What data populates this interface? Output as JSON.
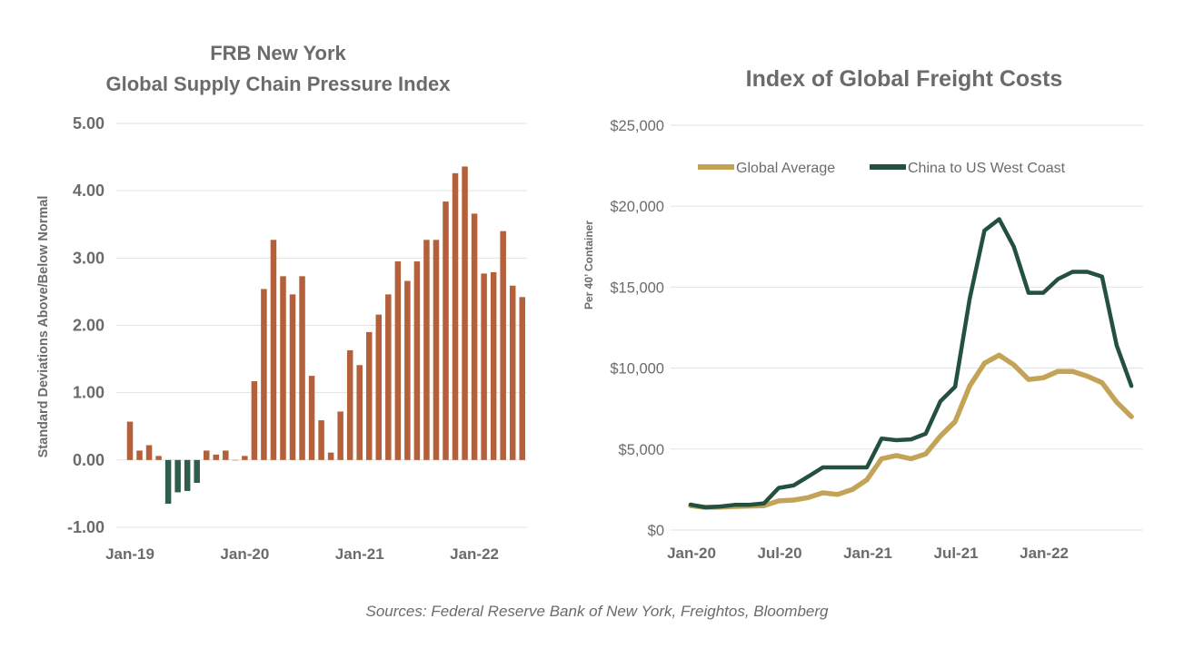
{
  "colors": {
    "positive_bar": "#b4603a",
    "negative_bar": "#2e5e4b",
    "global_average": "#c3a457",
    "china_us_west": "#24513f",
    "text": "#6b6b6b",
    "grid": "#e2e2e2"
  },
  "source_note": "Sources: Federal Reserve Bank of New York, Freightos, Bloomberg",
  "chart_data": [
    {
      "type": "bar",
      "title_line1": "FRB New York",
      "title_line2": "Global Supply Chain Pressure Index",
      "xlabel": "",
      "ylabel": "Standard Deviations Above/Below Normal",
      "ylim": [
        -1,
        5
      ],
      "yticks": [
        5,
        4,
        3,
        2,
        1,
        0,
        -1
      ],
      "ytick_labels": [
        "5.00",
        "4.00",
        "3.00",
        "2.00",
        "1.00",
        "0.00",
        "-1.00"
      ],
      "grid": true,
      "xtick_labels": [
        {
          "index": 0,
          "label": "Jan-19"
        },
        {
          "index": 12,
          "label": "Jan-20"
        },
        {
          "index": 24,
          "label": "Jan-21"
        },
        {
          "index": 36,
          "label": "Jan-22"
        }
      ],
      "categories": [
        "Jan-19",
        "Feb-19",
        "Mar-19",
        "Apr-19",
        "May-19",
        "Jun-19",
        "Jul-19",
        "Aug-19",
        "Sep-19",
        "Oct-19",
        "Nov-19",
        "Dec-19",
        "Jan-20",
        "Feb-20",
        "Mar-20",
        "Apr-20",
        "May-20",
        "Jun-20",
        "Jul-20",
        "Aug-20",
        "Sep-20",
        "Oct-20",
        "Nov-20",
        "Dec-20",
        "Jan-21",
        "Feb-21",
        "Mar-21",
        "Apr-21",
        "May-21",
        "Jun-21",
        "Jul-21",
        "Aug-21",
        "Sep-21",
        "Oct-21",
        "Nov-21",
        "Dec-21",
        "Jan-22",
        "Feb-22",
        "Mar-22",
        "Apr-22",
        "May-22",
        "Jun-22"
      ],
      "values": [
        0.57,
        0.14,
        0.22,
        0.06,
        -0.65,
        -0.48,
        -0.46,
        -0.34,
        0.14,
        0.08,
        0.14,
        0.0,
        0.06,
        1.17,
        2.54,
        3.27,
        2.73,
        2.46,
        2.73,
        1.25,
        0.59,
        0.11,
        0.72,
        1.63,
        1.41,
        1.9,
        2.16,
        2.46,
        2.95,
        2.66,
        2.95,
        3.27,
        3.27,
        3.84,
        4.26,
        4.36,
        3.66,
        2.77,
        2.79,
        3.4,
        2.59,
        2.42
      ]
    },
    {
      "type": "line",
      "title": "Index of Global Freight Costs",
      "xlabel": "",
      "ylabel": "Per 40’ Container",
      "ylim": [
        0,
        25000
      ],
      "yticks": [
        25000,
        20000,
        15000,
        10000,
        5000,
        0
      ],
      "ytick_labels": [
        "$25,000",
        "$20,000",
        "$15,000",
        "$10,000",
        "$5,000",
        "$0"
      ],
      "grid": true,
      "legend_position": "top",
      "xtick_labels": [
        {
          "index": 0,
          "label": "Jan-20"
        },
        {
          "index": 6,
          "label": "Jul-20"
        },
        {
          "index": 12,
          "label": "Jan-21"
        },
        {
          "index": 18,
          "label": "Jul-21"
        },
        {
          "index": 24,
          "label": "Jan-22"
        }
      ],
      "x": [
        "Jan-20",
        "Feb-20",
        "Mar-20",
        "Apr-20",
        "May-20",
        "Jun-20",
        "Jul-20",
        "Aug-20",
        "Sep-20",
        "Oct-20",
        "Nov-20",
        "Dec-20",
        "Jan-21",
        "Feb-21",
        "Mar-21",
        "Apr-21",
        "May-21",
        "Jun-21",
        "Jul-21",
        "Aug-21",
        "Sep-21",
        "Oct-21",
        "Nov-21",
        "Dec-21",
        "Jan-22",
        "Feb-22",
        "Mar-22",
        "Apr-22",
        "May-22",
        "Jun-22",
        "Jul-22"
      ],
      "series": [
        {
          "name": "Global Average",
          "color_key": "global_average",
          "values": [
            1500,
            1400,
            1420,
            1450,
            1480,
            1500,
            1800,
            1850,
            2000,
            2300,
            2200,
            2500,
            3100,
            4400,
            4600,
            4400,
            4700,
            5800,
            6700,
            8900,
            10300,
            10800,
            10200,
            9300,
            9400,
            9800,
            9800,
            9500,
            9100,
            7900,
            7000
          ]
        },
        {
          "name": "China to US West Coast",
          "color_key": "china_us_west",
          "values": [
            1570,
            1400,
            1450,
            1550,
            1550,
            1650,
            2600,
            2750,
            3300,
            3870,
            3870,
            3870,
            3870,
            5650,
            5550,
            5600,
            5950,
            7950,
            8850,
            14300,
            18500,
            19200,
            17500,
            14650,
            14650,
            15500,
            15950,
            15950,
            15650,
            11400,
            8900
          ]
        }
      ]
    }
  ]
}
